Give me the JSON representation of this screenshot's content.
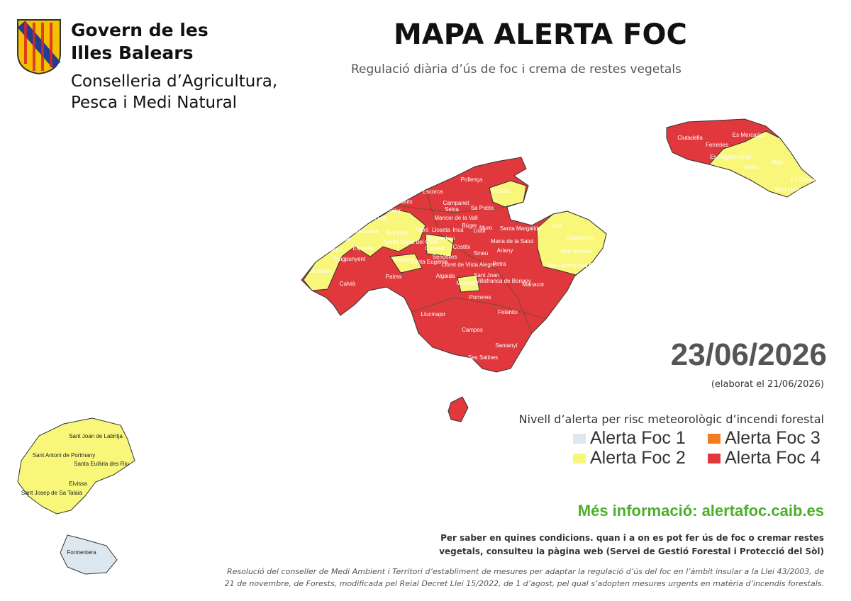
{
  "header": {
    "org_line1": "Govern de les",
    "org_line2": "Illes Balears",
    "dept_line1": "Conselleria d’Agricultura,",
    "dept_line2": "Pesca i Medi Natural"
  },
  "title": "MAPA ALERTA FOC",
  "subtitle": "Regulació diària d’ús de foc i crema de restes vegetals",
  "date": "23/06/2026",
  "elaborated": "(elaborat el 21/06/2026)",
  "legend": {
    "title": "Nivell d’alerta per risc meteorològic d’incendi forestal",
    "items": [
      {
        "label": "Alerta Foc 1",
        "color": "#dce7f0"
      },
      {
        "label": "Alerta Foc 2",
        "color": "#f8f77a"
      },
      {
        "label": "Alerta Foc 3",
        "color": "#f47c20"
      },
      {
        "label": "Alerta Foc 4",
        "color": "#e0383d"
      }
    ]
  },
  "more_info": "Més informació: alertafoc.caib.es",
  "note": [
    "Per saber en quines condicions. quan i a on es pot fer ús de foc o cremar restes",
    "vegetals, consulteu la pàgina web (Servei de Gestió Forestal i Protecció del Sòl)"
  ],
  "resolution": [
    "Resolució del conseller de Medi Ambient i Territori d’establiment de mesures per adaptar la regulació d’ús del foc en l’àmbit insular a la Llei 43/2003, de",
    "21 de novembre, de Forests, modificada pel Reial Decret Llei 15/2022, de 1 d’agost, pel qual s’adopten mesures urgents en matèria d’incendis forestals."
  ],
  "municipalities": [
    "Pollença",
    "Alcúdia",
    "Escorca",
    "Fornalutx",
    "Campanet",
    "Sóller",
    "Selva",
    "Sa Pobla",
    "Deià",
    "Mancor de la Vall",
    "Búger",
    "Valldemossa",
    "Bunyola",
    "Alaró",
    "Lloseta",
    "Inca",
    "Muro",
    "Santa Margalida",
    "Artà",
    "Banyalbufar",
    "Santa Maria del Camí",
    "Binissalem",
    "Llubí",
    "Capdepera",
    "Estellencs",
    "Esporles",
    "Consell",
    "Costitx",
    "Maria de la Salut",
    "Sineu",
    "Ariany",
    "Son Servera",
    "Sencelles",
    "Santa Eugènia",
    "Puigpunyent",
    "Marratxí",
    "Lloret de Vista Alegre",
    "Petra",
    "San Llorenç des Cardassar",
    "Andratx",
    "Algaida",
    "Sant Joan",
    "Villafranca de Bonany",
    "Calvià",
    "Palma",
    "Montuïri",
    "Manacor",
    "Porreres",
    "Felanitx",
    "Llucmajor",
    "Campos",
    "Santanyí",
    "Ses Salines",
    "Ciutadella",
    "Es Mercadal",
    "Ferreries",
    "Es Migjorn Gran",
    "Alaior",
    "Maó",
    "Es Castell",
    "Sant Lluís",
    "Sant Joan de Labritja",
    "Sant Antoni de Portmany",
    "Santa Eulària des Riu",
    "Eivissa",
    "Sant Josep de Sa Talaia",
    "Formentera"
  ]
}
